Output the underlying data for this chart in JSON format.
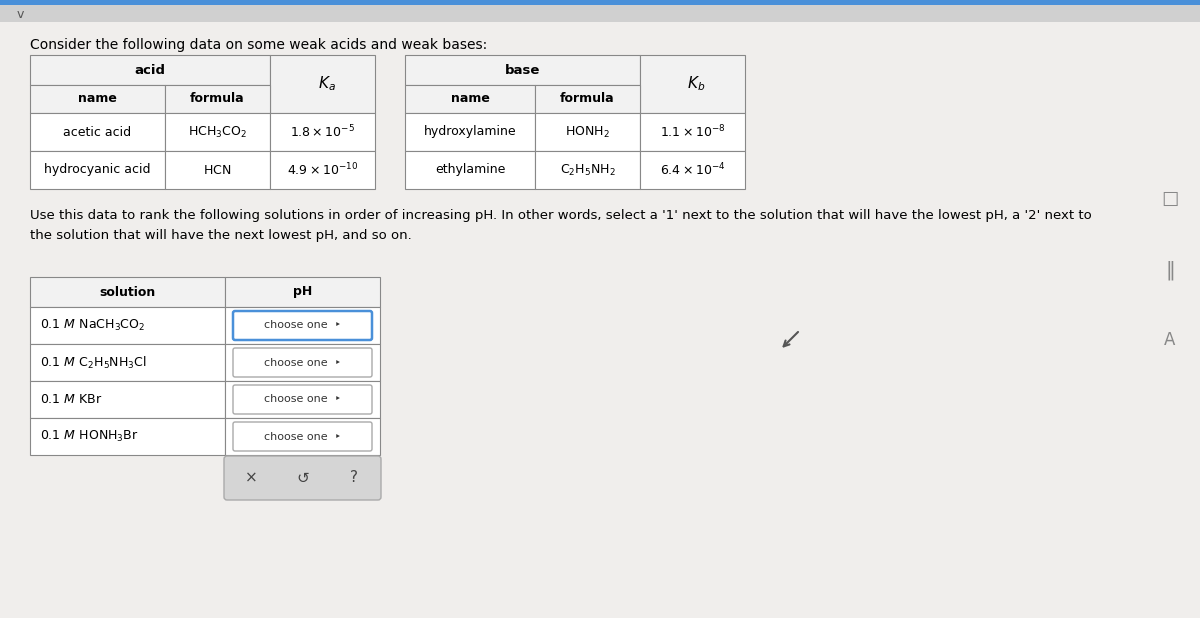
{
  "bg_color": "#f0eeec",
  "top_bar_color": "#5b9bd5",
  "title_text": "Consider the following data on some weak acids and weak bases:",
  "title_fontsize": 9.8,
  "table_line_color": "#888888",
  "header_bg": "#f0f0f0",
  "cell_bg": "#ffffff",
  "choose_one_border_first": "#4a90d9",
  "choose_one_border_rest": "#aaaaaa",
  "button_bar_bg": "#d8d8d8",
  "button_bar_border": "#bbbbbb",
  "acid_rows": [
    [
      "acetic acid",
      0
    ],
    [
      "hydrocyanic acid",
      1
    ]
  ],
  "base_rows": [
    [
      "hydroxylamine",
      0
    ],
    [
      "ethylamine",
      1
    ]
  ],
  "sol_rows": [
    "0.1 M NaCH_3CO_2",
    "0.1 M C_2H_5NH_3Cl",
    "0.1 M KBr",
    "0.1 M HONH_3Br"
  ],
  "acid_formulas": [
    "HCH_3CO_2",
    "HCN"
  ],
  "acid_ka": [
    "1.8 \\times 10^{-5}",
    "4.9 \\times 10^{-10}"
  ],
  "base_formulas": [
    "HONH_2",
    "C_2H_5NH_2"
  ],
  "base_kb": [
    "1.1 \\times 10^{-8}",
    "6.4 \\times 10^{-4}"
  ],
  "instruction": "Use this data to rank the following solutions in order of increasing pH. In other words, select a '1' next to the solution that will have the lowest pH, a '2' next to\nthe solution that will have the next lowest pH, and so on."
}
